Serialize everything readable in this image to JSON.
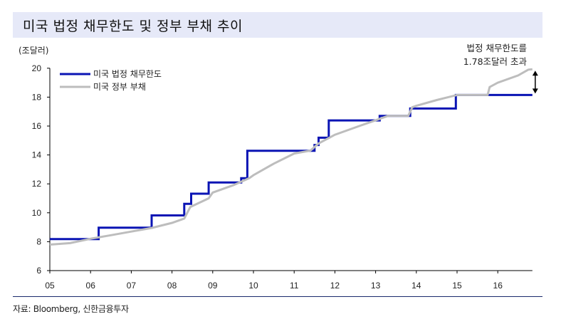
{
  "title": "미국 법정 채무한도 및 정부 부채 추이",
  "unit_label": "(조달러)",
  "annotation": {
    "line1": "법정 채무한도를",
    "line2": "1.78조달러  초과"
  },
  "source": "자료: Bloomberg, 신한금융투자",
  "colors": {
    "debt_limit": "#0a14b4",
    "public_debt": "#bdbdbd",
    "title_band": "#e6e9f8",
    "rule": "#1a2a6c"
  },
  "chart_data": {
    "type": "line",
    "title": "미국 법정 채무한도 및 정부 부채 추이",
    "xlabel": "",
    "ylabel": "(조달러)",
    "ylim": [
      6,
      20
    ],
    "xlim": [
      2005.0,
      2016.85
    ],
    "yticks": [
      6,
      8,
      10,
      12,
      14,
      16,
      18,
      20
    ],
    "xticks": [
      "05",
      "06",
      "07",
      "08",
      "09",
      "10",
      "11",
      "12",
      "13",
      "14",
      "15",
      "16"
    ],
    "grid": false,
    "legend_position": "upper-left",
    "annotations": [
      {
        "text": "법정 채무한도를 1.78조달러 초과",
        "x": 2016.85,
        "y_from": 18.15,
        "y_to": 19.93,
        "type": "double-arrow"
      }
    ],
    "series": [
      {
        "name": "미국 법정 채무한도",
        "style": "step",
        "points": [
          [
            2005.0,
            8.18
          ],
          [
            2006.2,
            8.18
          ],
          [
            2006.2,
            8.97
          ],
          [
            2007.5,
            8.97
          ],
          [
            2007.5,
            9.82
          ],
          [
            2008.3,
            9.82
          ],
          [
            2008.3,
            10.62
          ],
          [
            2008.47,
            10.62
          ],
          [
            2008.47,
            11.32
          ],
          [
            2008.9,
            11.32
          ],
          [
            2008.9,
            12.1
          ],
          [
            2009.7,
            12.1
          ],
          [
            2009.7,
            12.39
          ],
          [
            2009.85,
            12.39
          ],
          [
            2009.85,
            14.29
          ],
          [
            2011.5,
            14.29
          ],
          [
            2011.5,
            14.69
          ],
          [
            2011.6,
            14.69
          ],
          [
            2011.6,
            15.19
          ],
          [
            2011.85,
            15.19
          ],
          [
            2011.85,
            16.39
          ],
          [
            2013.1,
            16.39
          ],
          [
            2013.1,
            16.7
          ],
          [
            2013.85,
            16.7
          ],
          [
            2013.85,
            17.21
          ],
          [
            2014.97,
            17.21
          ],
          [
            2014.97,
            18.15
          ],
          [
            2016.85,
            18.15
          ]
        ]
      },
      {
        "name": "미국 정부 부채",
        "style": "line",
        "points": [
          [
            2005.0,
            7.8
          ],
          [
            2005.5,
            7.9
          ],
          [
            2006.0,
            8.2
          ],
          [
            2006.5,
            8.45
          ],
          [
            2007.0,
            8.7
          ],
          [
            2007.5,
            8.95
          ],
          [
            2008.0,
            9.3
          ],
          [
            2008.3,
            9.6
          ],
          [
            2008.45,
            10.4
          ],
          [
            2008.6,
            10.6
          ],
          [
            2008.9,
            11.0
          ],
          [
            2009.0,
            11.4
          ],
          [
            2009.5,
            11.9
          ],
          [
            2009.9,
            12.4
          ],
          [
            2010.0,
            12.6
          ],
          [
            2010.5,
            13.4
          ],
          [
            2011.0,
            14.1
          ],
          [
            2011.4,
            14.3
          ],
          [
            2011.6,
            14.8
          ],
          [
            2011.8,
            15.1
          ],
          [
            2012.0,
            15.4
          ],
          [
            2012.5,
            15.9
          ],
          [
            2013.0,
            16.4
          ],
          [
            2013.3,
            16.7
          ],
          [
            2013.8,
            16.7
          ],
          [
            2013.9,
            17.3
          ],
          [
            2014.0,
            17.4
          ],
          [
            2014.5,
            17.8
          ],
          [
            2015.0,
            18.15
          ],
          [
            2015.75,
            18.15
          ],
          [
            2015.8,
            18.7
          ],
          [
            2016.0,
            19.0
          ],
          [
            2016.5,
            19.5
          ],
          [
            2016.75,
            19.9
          ],
          [
            2016.85,
            19.93
          ]
        ]
      }
    ]
  },
  "legend": [
    {
      "label": "미국 법정 채무한도",
      "color": "#0a14b4"
    },
    {
      "label": "미국 정부 부채",
      "color": "#bdbdbd"
    }
  ]
}
